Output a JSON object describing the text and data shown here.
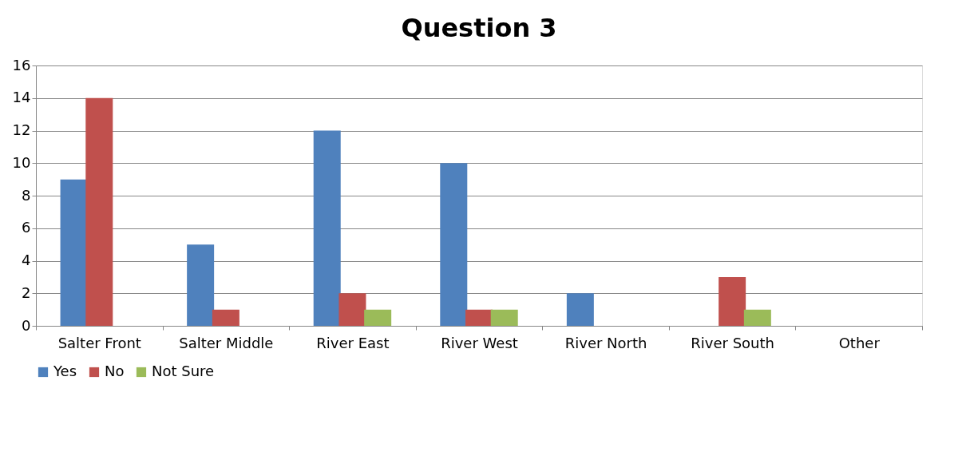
{
  "chart_data": {
    "type": "bar",
    "title": "Question 3",
    "categories": [
      "Salter Front",
      "Salter Middle",
      "River East",
      "River West",
      "River North",
      "River South",
      "Other"
    ],
    "series": [
      {
        "name": "Yes",
        "color": "#4f81bd",
        "values": [
          9,
          5,
          12,
          10,
          2,
          0,
          0
        ]
      },
      {
        "name": "No",
        "color": "#c0504d",
        "values": [
          14,
          1,
          2,
          1,
          0,
          3,
          0
        ]
      },
      {
        "name": "Not Sure",
        "color": "#9bbb59",
        "values": [
          0,
          0,
          1,
          1,
          0,
          1,
          0
        ]
      }
    ],
    "ylim": [
      0,
      16
    ],
    "yticks": [
      0,
      2,
      4,
      6,
      8,
      10,
      12,
      14,
      16
    ],
    "grid": "y",
    "legend": "bottom"
  }
}
